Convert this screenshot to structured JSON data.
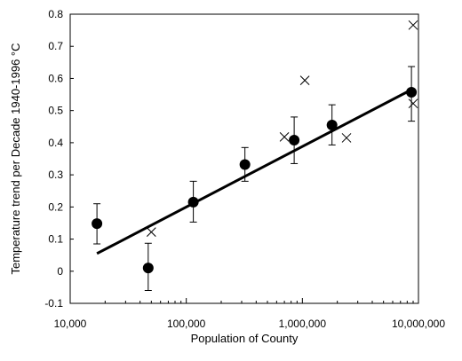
{
  "chart_data": {
    "type": "scatter",
    "xlabel": "Population of County",
    "ylabel": "Temperature trend per Decade  1940-1996  °C",
    "x_scale": "log",
    "xlim": [
      10000,
      10000000
    ],
    "ylim": [
      -0.1,
      0.8
    ],
    "x_ticks": [
      10000,
      100000,
      1000000,
      10000000
    ],
    "x_tick_labels": [
      "10,000",
      "100,000",
      "1,000,000",
      "10,000,000"
    ],
    "y_ticks": [
      -0.1,
      0,
      0.1,
      0.2,
      0.3,
      0.4,
      0.5,
      0.6,
      0.7,
      0.8
    ],
    "y_tick_labels": [
      "-0.1",
      "0",
      "0.1",
      "0.2",
      "0.3",
      "0.4",
      "0.5",
      "0.6",
      "0.7",
      "0.8"
    ],
    "grid": false,
    "legend": "none",
    "series": [
      {
        "marker": "circle",
        "points": [
          {
            "x": 17000,
            "y": 0.148,
            "err_low": 0.085,
            "err_high": 0.21
          },
          {
            "x": 47000,
            "y": 0.01,
            "err_low": -0.06,
            "err_high": 0.087
          },
          {
            "x": 115000,
            "y": 0.215,
            "err_low": 0.153,
            "err_high": 0.28
          },
          {
            "x": 320000,
            "y": 0.332,
            "err_low": 0.28,
            "err_high": 0.385
          },
          {
            "x": 850000,
            "y": 0.408,
            "err_low": 0.335,
            "err_high": 0.48
          },
          {
            "x": 1800000,
            "y": 0.455,
            "err_low": 0.393,
            "err_high": 0.518
          },
          {
            "x": 8700000,
            "y": 0.557,
            "err_low": 0.467,
            "err_high": 0.637
          }
        ]
      },
      {
        "marker": "x",
        "points": [
          {
            "x": 50000,
            "y": 0.122
          },
          {
            "x": 700000,
            "y": 0.418
          },
          {
            "x": 1050000,
            "y": 0.594
          },
          {
            "x": 2400000,
            "y": 0.415
          },
          {
            "x": 9000000,
            "y": 0.522
          },
          {
            "x": 9000000,
            "y": 0.766
          }
        ]
      },
      {
        "type": "trendline",
        "points": [
          {
            "x": 17000,
            "y": 0.055
          },
          {
            "x": 8700000,
            "y": 0.565
          }
        ]
      }
    ]
  }
}
